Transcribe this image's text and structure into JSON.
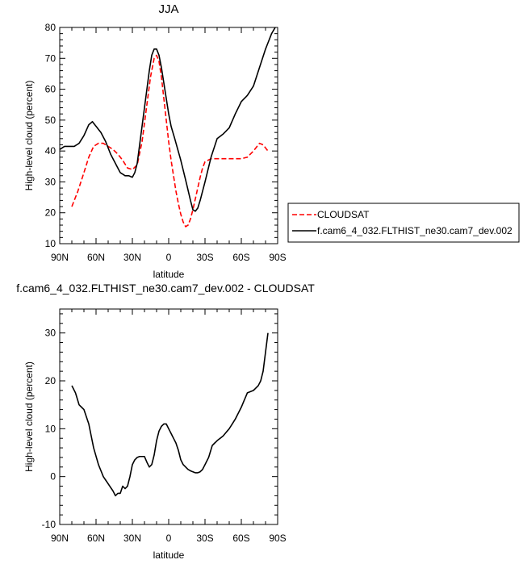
{
  "chart_data": [
    {
      "type": "line",
      "title": "JJA",
      "xlabel": "latitude",
      "ylabel": "High-level cloud (percent)",
      "xlim": [
        90,
        -90
      ],
      "ylim": [
        10,
        80
      ],
      "x_ticks": [
        90,
        60,
        30,
        0,
        -30,
        -60,
        -90
      ],
      "x_tick_labels": [
        "90N",
        "60N",
        "30N",
        "0",
        "30S",
        "60S",
        "90S"
      ],
      "y_ticks": [
        10,
        20,
        30,
        40,
        50,
        60,
        70,
        80
      ],
      "y_tick_labels": [
        "10",
        "20",
        "30",
        "40",
        "50",
        "60",
        "70",
        "80"
      ],
      "grid": false,
      "legend": "right-outside",
      "series": [
        {
          "name": "CLOUDSAT",
          "color": "#ff0000",
          "dash": "dashed",
          "x": [
            80,
            75,
            70,
            66,
            62,
            58,
            54,
            50,
            46,
            42,
            38,
            34,
            30,
            26,
            22,
            18,
            15,
            12,
            10,
            8,
            6,
            4,
            2,
            0,
            -2,
            -4,
            -6,
            -8,
            -10,
            -12,
            -14,
            -16,
            -18,
            -20,
            -22,
            -24,
            -26,
            -28,
            -30,
            -35,
            -40,
            -45,
            -50,
            -55,
            -60,
            -65,
            -70,
            -75,
            -78,
            -82
          ],
          "y": [
            22,
            27,
            33,
            38,
            41.5,
            42.5,
            42.5,
            41.5,
            40.5,
            39,
            37,
            34.5,
            34,
            35.5,
            43,
            55,
            64,
            70,
            71,
            69,
            64,
            57,
            50,
            43,
            37,
            32,
            27,
            23,
            19.5,
            17,
            15.5,
            16,
            18,
            21,
            24.5,
            28,
            31.5,
            34.5,
            36.5,
            37.5,
            37.5,
            37.5,
            37.5,
            37.5,
            37.5,
            38,
            40,
            42.5,
            42,
            40
          ]
        },
        {
          "name": "f.cam6_4_032.FLTHIST_ne30.cam7_dev.002",
          "color": "#000000",
          "dash": "solid",
          "x": [
            90,
            86,
            82,
            78,
            74,
            70,
            66,
            63,
            60,
            56,
            52,
            48,
            44,
            40,
            36,
            33,
            30,
            28,
            26,
            24,
            20,
            16,
            14,
            12,
            10,
            8,
            6,
            4,
            2,
            0,
            -2,
            -5,
            -10,
            -15,
            -18,
            -20,
            -22,
            -24,
            -26,
            -28,
            -30,
            -35,
            -40,
            -45,
            -50,
            -55,
            -60,
            -65,
            -70,
            -75,
            -80,
            -85,
            -88
          ],
          "y": [
            40.5,
            41.5,
            41.5,
            41.5,
            42.5,
            45,
            48.5,
            49.5,
            48,
            46,
            43,
            39,
            36,
            33,
            32,
            32,
            31.5,
            33,
            36,
            42,
            54,
            66,
            71,
            73,
            73,
            71,
            67,
            62,
            57,
            52,
            48,
            44,
            37,
            29,
            24,
            21,
            20.5,
            21.5,
            24,
            27,
            30,
            38,
            44,
            45.5,
            47.5,
            52,
            56,
            58,
            61,
            67,
            73,
            78,
            80
          ]
        }
      ]
    },
    {
      "type": "line",
      "title": "f.cam6_4_032.FLTHIST_ne30.cam7_dev.002 - CLOUDSAT",
      "xlabel": "latitude",
      "ylabel": "High-level cloud (percent)",
      "xlim": [
        90,
        -90
      ],
      "ylim": [
        -10,
        35
      ],
      "x_ticks": [
        90,
        60,
        30,
        0,
        -30,
        -60,
        -90
      ],
      "x_tick_labels": [
        "90N",
        "60N",
        "30N",
        "0",
        "30S",
        "60S",
        "90S"
      ],
      "y_ticks": [
        -10,
        0,
        10,
        20,
        30
      ],
      "y_tick_labels": [
        "-10",
        "0",
        "10",
        "20",
        "30"
      ],
      "grid": false,
      "series": [
        {
          "color": "#000000",
          "dash": "solid",
          "x": [
            80,
            77,
            74,
            70,
            66,
            62,
            58,
            54,
            50,
            46,
            44,
            42,
            40,
            38,
            36,
            34,
            32,
            30,
            28,
            26,
            24,
            22,
            20,
            18,
            16,
            14,
            12,
            10,
            8,
            6,
            4,
            2,
            0,
            -2,
            -4,
            -6,
            -8,
            -10,
            -12,
            -14,
            -16,
            -18,
            -20,
            -22,
            -24,
            -26,
            -28,
            -30,
            -33,
            -36,
            -40,
            -45,
            -50,
            -55,
            -60,
            -65,
            -70,
            -72,
            -74,
            -76,
            -78,
            -80,
            -82
          ],
          "y": [
            19,
            17.5,
            15,
            14,
            11,
            6,
            2.5,
            0,
            -1.5,
            -3,
            -4,
            -3.5,
            -3.5,
            -2,
            -2.5,
            -2,
            0,
            2.5,
            3.5,
            4,
            4.2,
            4.2,
            4.2,
            3,
            2,
            2.5,
            4.5,
            7.5,
            9.5,
            10.5,
            11,
            11,
            10,
            9,
            8,
            7,
            5.5,
            3.5,
            2.5,
            2,
            1.5,
            1.2,
            1,
            0.8,
            0.8,
            1,
            1.5,
            2.5,
            4,
            6.5,
            7.5,
            8.5,
            10,
            12,
            14.5,
            17.5,
            18,
            18.5,
            19,
            20,
            22,
            26,
            30
          ]
        }
      ]
    }
  ]
}
